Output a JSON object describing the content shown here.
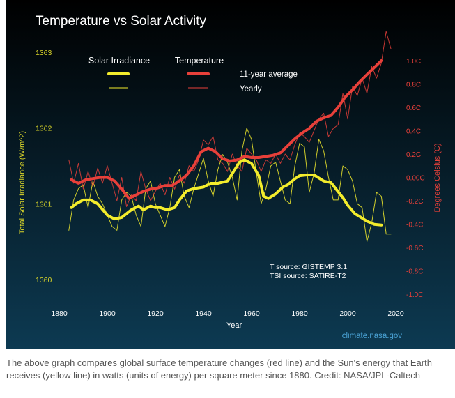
{
  "caption": "The above graph compares global surface temperature changes (red line) and the Sun's energy that Earth receives (yellow line) in watts (units of energy) per square meter since 1880. Credit: NASA/JPL-Caltech",
  "watermark": "climate.nasa.gov",
  "colors": {
    "background_top": "#000000",
    "background_bottom": "#0d3a52",
    "temperature": "#e8403a",
    "solar": "#f3ec2c",
    "tsi_axis_text": "#d6d229",
    "temp_axis_text": "#e8403a",
    "text": "#ffffff",
    "watermark": "#4aa3d6"
  },
  "chart_data": {
    "type": "line",
    "title": "Temperature vs Solar Activity",
    "xlabel": "Year",
    "ylabel_left": "Total Solar Irradiance (W/m^2)",
    "ylabel_right": "Degrees Celsius (C)",
    "xlim": [
      1880,
      2020
    ],
    "xticks": [
      1880,
      1900,
      1920,
      1940,
      1960,
      1980,
      2000,
      2020
    ],
    "ylim_left": [
      1360,
      1363
    ],
    "yticks_left": [
      1360,
      1361,
      1362,
      1363
    ],
    "ylim_right": [
      -1.0,
      1.0
    ],
    "yticks_right": [
      -1.0,
      -0.8,
      -0.6,
      -0.4,
      -0.2,
      0.0,
      0.2,
      0.4,
      0.6,
      0.8,
      1.0
    ],
    "yticks_right_labels": [
      "-1.0C",
      "-0.8C",
      "-0.6C",
      "-0.4C",
      "-0.2C",
      "0.00C",
      "0.2C",
      "0.4C",
      "0.6C",
      "0.8C",
      "1.0C"
    ],
    "legend": {
      "placement": "top-left",
      "group_solar": "Solar Irradiance",
      "group_temperature": "Temperature",
      "avg_label": "11-year average",
      "yearly_label": "Yearly"
    },
    "annotations": [
      "T source: GISTEMP 3.1",
      "TSI source: SATIRE-T2"
    ],
    "series": [
      {
        "key": "solar_avg",
        "axis": "left",
        "style": "thick",
        "x": [
          1885,
          1887,
          1890,
          1893,
          1896,
          1900,
          1903,
          1906,
          1910,
          1913,
          1915,
          1918,
          1920,
          1922,
          1925,
          1928,
          1930,
          1933,
          1936,
          1940,
          1943,
          1946,
          1950,
          1953,
          1955,
          1957,
          1960,
          1963,
          1965,
          1967,
          1970,
          1973,
          1975,
          1978,
          1980,
          1983,
          1986,
          1990,
          1993,
          1995,
          1998,
          2000,
          2003,
          2005,
          2008,
          2011,
          2014
        ],
        "y": [
          1360.95,
          1361.0,
          1361.05,
          1361.05,
          1361.0,
          1360.85,
          1360.8,
          1360.82,
          1360.92,
          1360.97,
          1360.92,
          1360.97,
          1360.95,
          1360.95,
          1360.92,
          1360.95,
          1361.05,
          1361.17,
          1361.2,
          1361.22,
          1361.27,
          1361.27,
          1361.3,
          1361.45,
          1361.55,
          1361.58,
          1361.53,
          1361.37,
          1361.1,
          1361.07,
          1361.13,
          1361.22,
          1361.25,
          1361.33,
          1361.37,
          1361.38,
          1361.38,
          1361.3,
          1361.28,
          1361.2,
          1361.08,
          1360.98,
          1360.87,
          1360.83,
          1360.77,
          1360.73,
          1360.72
        ]
      },
      {
        "key": "temp_avg",
        "axis": "right",
        "style": "thick",
        "x": [
          1885,
          1888,
          1891,
          1894,
          1897,
          1900,
          1903,
          1906,
          1909,
          1912,
          1915,
          1918,
          1921,
          1924,
          1927,
          1930,
          1933,
          1936,
          1939,
          1942,
          1945,
          1948,
          1951,
          1954,
          1957,
          1960,
          1963,
          1966,
          1969,
          1972,
          1975,
          1978,
          1981,
          1984,
          1987,
          1990,
          1993,
          1996,
          1999,
          2002,
          2005,
          2008,
          2011,
          2014
        ],
        "y": [
          -0.02,
          -0.05,
          -0.02,
          -0.01,
          0.0,
          0.0,
          -0.03,
          -0.1,
          -0.18,
          -0.15,
          -0.12,
          -0.1,
          -0.09,
          -0.07,
          -0.07,
          -0.03,
          0.02,
          0.1,
          0.22,
          0.25,
          0.22,
          0.16,
          0.14,
          0.15,
          0.18,
          0.17,
          0.17,
          0.18,
          0.19,
          0.21,
          0.27,
          0.33,
          0.38,
          0.42,
          0.48,
          0.51,
          0.53,
          0.6,
          0.69,
          0.75,
          0.82,
          0.88,
          0.94,
          1.0
        ]
      },
      {
        "key": "solar_yearly",
        "axis": "left",
        "style": "thin",
        "x": [
          1884,
          1886,
          1888,
          1890,
          1892,
          1894,
          1896,
          1898,
          1900,
          1902,
          1904,
          1906,
          1908,
          1910,
          1912,
          1914,
          1916,
          1918,
          1920,
          1922,
          1924,
          1926,
          1928,
          1930,
          1932,
          1934,
          1936,
          1938,
          1940,
          1942,
          1944,
          1946,
          1948,
          1950,
          1952,
          1954,
          1956,
          1958,
          1960,
          1962,
          1964,
          1966,
          1968,
          1970,
          1972,
          1974,
          1976,
          1978,
          1980,
          1982,
          1984,
          1986,
          1988,
          1990,
          1992,
          1994,
          1996,
          1998,
          2000,
          2002,
          2004,
          2006,
          2008,
          2010,
          2012,
          2014,
          2016,
          2018
        ],
        "y": [
          1360.65,
          1361.05,
          1361.2,
          1361.25,
          1360.95,
          1361.3,
          1361.1,
          1361.0,
          1360.85,
          1360.7,
          1360.65,
          1361.05,
          1361.15,
          1361.1,
          1360.85,
          1360.7,
          1361.2,
          1361.3,
          1361.0,
          1360.85,
          1360.7,
          1360.95,
          1361.35,
          1361.45,
          1361.1,
          1360.95,
          1361.2,
          1361.4,
          1361.6,
          1361.3,
          1361.1,
          1361.45,
          1361.65,
          1361.55,
          1361.35,
          1361.05,
          1361.7,
          1362.0,
          1361.85,
          1361.4,
          1361.0,
          1361.2,
          1361.5,
          1361.55,
          1361.3,
          1361.05,
          1361.0,
          1361.5,
          1361.8,
          1361.75,
          1361.15,
          1361.4,
          1361.85,
          1361.7,
          1361.35,
          1361.05,
          1361.05,
          1361.5,
          1361.45,
          1361.3,
          1361.0,
          1360.95,
          1360.5,
          1360.75,
          1361.15,
          1361.1,
          1360.6,
          1360.6
        ]
      },
      {
        "key": "temp_yearly",
        "axis": "right",
        "style": "thin",
        "x": [
          1884,
          1886,
          1888,
          1890,
          1892,
          1894,
          1896,
          1898,
          1900,
          1902,
          1904,
          1906,
          1908,
          1910,
          1912,
          1914,
          1916,
          1918,
          1920,
          1922,
          1924,
          1926,
          1928,
          1930,
          1932,
          1934,
          1936,
          1938,
          1940,
          1942,
          1944,
          1946,
          1948,
          1950,
          1952,
          1954,
          1956,
          1958,
          1960,
          1962,
          1964,
          1966,
          1968,
          1970,
          1972,
          1974,
          1976,
          1978,
          1980,
          1982,
          1984,
          1986,
          1988,
          1990,
          1992,
          1994,
          1996,
          1998,
          2000,
          2002,
          2004,
          2006,
          2008,
          2010,
          2012,
          2014,
          2016,
          2018
        ],
        "y": [
          0.15,
          -0.05,
          0.12,
          -0.1,
          0.05,
          -0.08,
          0.08,
          -0.05,
          0.1,
          -0.05,
          -0.2,
          0.0,
          -0.25,
          -0.15,
          -0.2,
          0.05,
          -0.1,
          -0.2,
          -0.12,
          -0.05,
          -0.15,
          0.0,
          -0.1,
          0.02,
          -0.05,
          0.1,
          0.05,
          0.15,
          0.32,
          0.28,
          0.35,
          0.15,
          0.12,
          0.05,
          0.2,
          0.1,
          0.05,
          0.25,
          0.2,
          0.15,
          0.05,
          0.15,
          0.12,
          0.2,
          0.12,
          0.2,
          0.15,
          0.28,
          0.38,
          0.35,
          0.3,
          0.4,
          0.5,
          0.55,
          0.35,
          0.42,
          0.45,
          0.72,
          0.5,
          0.78,
          0.7,
          0.85,
          0.72,
          0.95,
          0.85,
          0.98,
          1.25,
          1.1
        ]
      }
    ]
  }
}
